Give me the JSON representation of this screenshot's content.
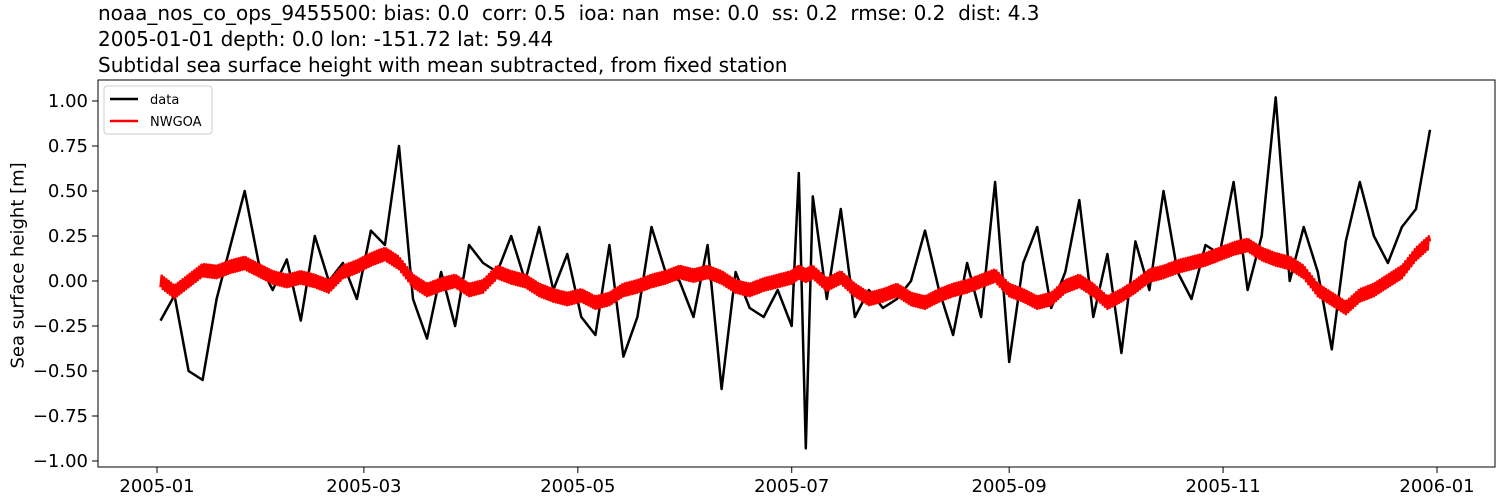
{
  "title": {
    "line1": "noaa_nos_co_ops_9455500: bias: 0.0  corr: 0.5  ioa: nan  mse: 0.0  ss: 0.2  rmse: 0.2  dist: 4.3",
    "line2": "2005-01-01 depth: 0.0 lon: -151.72 lat: 59.44",
    "line3": "Subtidal sea surface height with mean subtracted, from fixed station"
  },
  "axes": {
    "ylabel": "Sea surface height [m]",
    "yticks": [
      "1.00",
      "0.75",
      "0.50",
      "0.25",
      "0.00",
      "−0.25",
      "−0.50",
      "−0.75",
      "−1.00"
    ],
    "xticks": [
      "2005-01",
      "2005-03",
      "2005-05",
      "2005-07",
      "2005-09",
      "2005-11",
      "2006-01"
    ]
  },
  "legend": {
    "items": [
      {
        "label": "data",
        "color": "#000000"
      },
      {
        "label": "NWGOA",
        "color": "#ff0000"
      }
    ]
  },
  "colors": {
    "data": "#000000",
    "model": "#ff0000",
    "axis": "#000000"
  },
  "chart_data": {
    "type": "line",
    "title": "noaa_nos_co_ops_9455500: bias: 0.0  corr: 0.5  ioa: nan  mse: 0.0  ss: 0.2  rmse: 0.2  dist: 4.3 / 2005-01-01 depth: 0.0 lon: -151.72 lat: 59.44 / Subtidal sea surface height with mean subtracted, from fixed station",
    "xlabel": "",
    "ylabel": "Sea surface height [m]",
    "ylim": [
      -1.03,
      1.12
    ],
    "xlim": [
      "2004-12-13",
      "2006-01-17"
    ],
    "legend_position": "upper left",
    "grid": false,
    "x": [
      "2005-01-02",
      "2005-01-06",
      "2005-01-10",
      "2005-01-14",
      "2005-01-18",
      "2005-01-22",
      "2005-01-26",
      "2005-01-30",
      "2005-02-03",
      "2005-02-07",
      "2005-02-11",
      "2005-02-15",
      "2005-02-19",
      "2005-02-23",
      "2005-02-27",
      "2005-03-03",
      "2005-03-07",
      "2005-03-11",
      "2005-03-15",
      "2005-03-19",
      "2005-03-23",
      "2005-03-27",
      "2005-03-31",
      "2005-04-04",
      "2005-04-08",
      "2005-04-12",
      "2005-04-16",
      "2005-04-20",
      "2005-04-24",
      "2005-04-28",
      "2005-05-02",
      "2005-05-06",
      "2005-05-10",
      "2005-05-14",
      "2005-05-18",
      "2005-05-22",
      "2005-05-26",
      "2005-05-30",
      "2005-06-03",
      "2005-06-07",
      "2005-06-11",
      "2005-06-15",
      "2005-06-19",
      "2005-06-23",
      "2005-06-27",
      "2005-07-01",
      "2005-07-03",
      "2005-07-05",
      "2005-07-07",
      "2005-07-11",
      "2005-07-15",
      "2005-07-19",
      "2005-07-23",
      "2005-07-27",
      "2005-07-31",
      "2005-08-04",
      "2005-08-08",
      "2005-08-12",
      "2005-08-16",
      "2005-08-20",
      "2005-08-24",
      "2005-08-28",
      "2005-09-01",
      "2005-09-05",
      "2005-09-09",
      "2005-09-13",
      "2005-09-17",
      "2005-09-21",
      "2005-09-25",
      "2005-09-29",
      "2005-10-03",
      "2005-10-07",
      "2005-10-11",
      "2005-10-15",
      "2005-10-19",
      "2005-10-23",
      "2005-10-27",
      "2005-10-31",
      "2005-11-04",
      "2005-11-08",
      "2005-11-12",
      "2005-11-16",
      "2005-11-20",
      "2005-11-24",
      "2005-11-28",
      "2005-12-02",
      "2005-12-06",
      "2005-12-10",
      "2005-12-14",
      "2005-12-18",
      "2005-12-22",
      "2005-12-26",
      "2005-12-30"
    ],
    "series": [
      {
        "name": "data",
        "values": [
          -0.22,
          -0.08,
          -0.5,
          -0.55,
          -0.1,
          0.2,
          0.5,
          0.1,
          -0.05,
          0.12,
          -0.22,
          0.25,
          0.0,
          0.1,
          -0.1,
          0.28,
          0.2,
          0.75,
          -0.1,
          -0.32,
          0.05,
          -0.25,
          0.2,
          0.1,
          0.05,
          0.25,
          0.0,
          0.3,
          -0.05,
          0.15,
          -0.2,
          -0.3,
          0.2,
          -0.42,
          -0.2,
          0.3,
          0.05,
          0.0,
          -0.2,
          0.2,
          -0.6,
          0.05,
          -0.15,
          -0.2,
          -0.05,
          -0.25,
          0.6,
          -0.93,
          0.47,
          -0.1,
          0.4,
          -0.2,
          -0.05,
          -0.15,
          -0.1,
          0.0,
          0.28,
          -0.05,
          -0.3,
          0.1,
          -0.2,
          0.55,
          -0.45,
          0.1,
          0.3,
          -0.15,
          0.05,
          0.45,
          -0.2,
          0.15,
          -0.4,
          0.22,
          -0.05,
          0.5,
          0.05,
          -0.1,
          0.2,
          0.15,
          0.55,
          -0.05,
          0.25,
          1.02,
          0.0,
          0.3,
          0.05,
          -0.38,
          0.22,
          0.55,
          0.25,
          0.1,
          0.3,
          0.4,
          0.84
        ]
      },
      {
        "name": "NWGOA",
        "values": [
          0.0,
          -0.06,
          0.0,
          0.06,
          0.05,
          0.08,
          0.1,
          0.06,
          0.02,
          0.0,
          0.02,
          0.0,
          -0.03,
          0.05,
          0.08,
          0.12,
          0.15,
          0.1,
          0.0,
          -0.05,
          -0.02,
          0.0,
          -0.05,
          -0.03,
          0.05,
          0.02,
          0.0,
          -0.05,
          -0.08,
          -0.1,
          -0.08,
          -0.12,
          -0.1,
          -0.05,
          -0.03,
          0.0,
          0.02,
          0.05,
          0.03,
          0.05,
          0.02,
          -0.03,
          -0.05,
          -0.02,
          0.0,
          0.02,
          0.05,
          0.03,
          0.05,
          -0.02,
          0.02,
          -0.05,
          -0.1,
          -0.08,
          -0.05,
          -0.1,
          -0.12,
          -0.08,
          -0.05,
          -0.03,
          0.0,
          0.03,
          -0.05,
          -0.08,
          -0.12,
          -0.1,
          -0.03,
          0.0,
          -0.05,
          -0.12,
          -0.08,
          -0.03,
          0.03,
          0.05,
          0.08,
          0.1,
          0.12,
          0.15,
          0.18,
          0.2,
          0.15,
          0.12,
          0.1,
          0.05,
          -0.05,
          -0.1,
          -0.15,
          -0.08,
          -0.05,
          0.0,
          0.05,
          0.15,
          0.22
        ]
      }
    ]
  }
}
